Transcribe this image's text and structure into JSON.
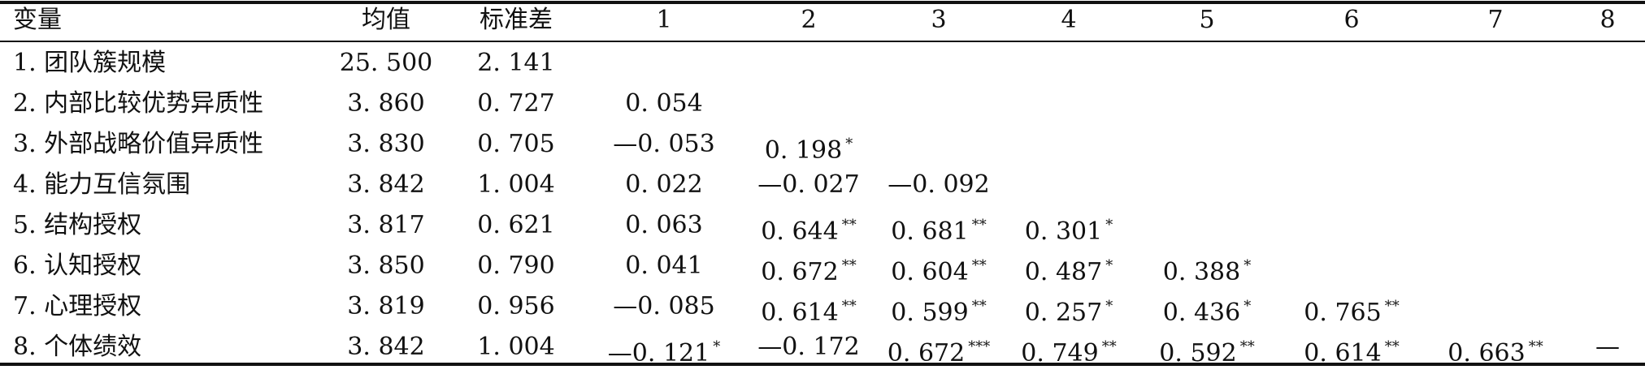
{
  "columns": [
    "变量",
    "均值",
    "标准差",
    "1",
    "2",
    "3",
    "4",
    "5",
    "6",
    "7",
    "8"
  ],
  "rows": [
    {
      "label": "1. 团队簇规模",
      "mean": "25. 500",
      "sd": "2. 141",
      "cells": []
    },
    {
      "label": "2. 内部比较优势异质性",
      "mean": "3. 860",
      "sd": "0. 727",
      "cells": [
        {
          "v": "0. 054",
          "s": ""
        }
      ]
    },
    {
      "label": "3. 外部战略价值异质性",
      "mean": "3. 830",
      "sd": "0. 705",
      "cells": [
        {
          "v": "—0. 053",
          "s": ""
        },
        {
          "v": "0. 198",
          "s": "*"
        }
      ]
    },
    {
      "label": "4. 能力互信氛围",
      "mean": "3. 842",
      "sd": "1. 004",
      "cells": [
        {
          "v": "0. 022",
          "s": ""
        },
        {
          "v": "—0. 027",
          "s": ""
        },
        {
          "v": "—0. 092",
          "s": ""
        }
      ]
    },
    {
      "label": "5. 结构授权",
      "mean": "3. 817",
      "sd": "0. 621",
      "cells": [
        {
          "v": "0. 063",
          "s": ""
        },
        {
          "v": "0. 644",
          "s": "**"
        },
        {
          "v": "0. 681",
          "s": "**"
        },
        {
          "v": "0. 301",
          "s": "*"
        }
      ]
    },
    {
      "label": "6. 认知授权",
      "mean": "3. 850",
      "sd": "0. 790",
      "cells": [
        {
          "v": "0. 041",
          "s": ""
        },
        {
          "v": "0. 672",
          "s": "**"
        },
        {
          "v": "0. 604",
          "s": "**"
        },
        {
          "v": "0. 487",
          "s": "*"
        },
        {
          "v": "0. 388",
          "s": "*"
        }
      ]
    },
    {
      "label": "7. 心理授权",
      "mean": "3. 819",
      "sd": "0. 956",
      "cells": [
        {
          "v": "—0. 085",
          "s": ""
        },
        {
          "v": "0. 614",
          "s": "**"
        },
        {
          "v": "0. 599",
          "s": "**"
        },
        {
          "v": "0. 257",
          "s": "*"
        },
        {
          "v": "0. 436",
          "s": "*"
        },
        {
          "v": "0. 765",
          "s": "**"
        }
      ]
    },
    {
      "label": "8. 个体绩效",
      "mean": "3. 842",
      "sd": "1. 004",
      "cells": [
        {
          "v": "—0. 121",
          "s": "*"
        },
        {
          "v": "—0. 172",
          "s": ""
        },
        {
          "v": "0. 672",
          "s": "***"
        },
        {
          "v": "0. 749",
          "s": "**"
        },
        {
          "v": "0. 592",
          "s": "**"
        },
        {
          "v": "0. 614",
          "s": "**"
        },
        {
          "v": "0. 663",
          "s": "**"
        },
        {
          "v": "—",
          "s": ""
        }
      ]
    }
  ]
}
